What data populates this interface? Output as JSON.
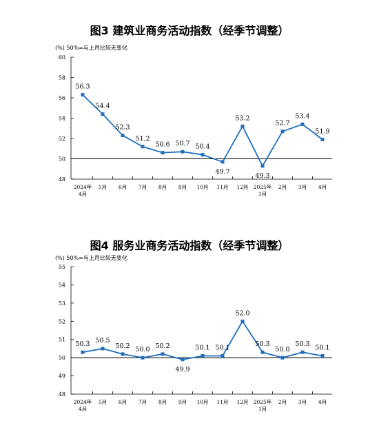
{
  "chart_data": [
    {
      "type": "line",
      "title": "图3  建筑业商务活动指数（经季节调整）",
      "unit_note": "(%)  50%=与上月比较无变化",
      "categories": [
        [
          "2024年",
          "4月"
        ],
        [
          "5月"
        ],
        [
          "6月"
        ],
        [
          "7月"
        ],
        [
          "8月"
        ],
        [
          "9月"
        ],
        [
          "10月"
        ],
        [
          "11月"
        ],
        [
          "12月"
        ],
        [
          "2025年",
          "1月"
        ],
        [
          "2月"
        ],
        [
          "3月"
        ],
        [
          "4月"
        ]
      ],
      "values": [
        56.3,
        54.4,
        52.3,
        51.2,
        50.6,
        50.7,
        50.4,
        49.7,
        53.2,
        49.3,
        52.7,
        53.4,
        51.9
      ],
      "value_labels": [
        "56.3",
        "54.4",
        "52.3",
        "51.2",
        "50.6",
        "50.7",
        "50.4",
        "49.7",
        "53.2",
        "49.3",
        "52.7",
        "53.4",
        "51.9"
      ],
      "y_ticks": [
        "48",
        "50",
        "52",
        "54",
        "56",
        "58",
        "60"
      ],
      "ylim": [
        48,
        60
      ],
      "reference_line": 50,
      "color": "#1f6fbf"
    },
    {
      "type": "line",
      "title": "图4  服务业商务活动指数（经季节调整）",
      "unit_note": "(%)  50%=与上月比较无变化",
      "categories": [
        [
          "2024年",
          "4月"
        ],
        [
          "5月"
        ],
        [
          "6月"
        ],
        [
          "7月"
        ],
        [
          "8月"
        ],
        [
          "9月"
        ],
        [
          "10月"
        ],
        [
          "11月"
        ],
        [
          "12月"
        ],
        [
          "2025年",
          "1月"
        ],
        [
          "2月"
        ],
        [
          "3月"
        ],
        [
          "4月"
        ]
      ],
      "values": [
        50.3,
        50.5,
        50.2,
        50.0,
        50.2,
        49.9,
        50.1,
        50.1,
        52.0,
        50.3,
        50.0,
        50.3,
        50.1
      ],
      "value_labels": [
        "50.3",
        "50.5",
        "50.2",
        "50.0",
        "50.2",
        "49.9",
        "50.1",
        "50.1",
        "52.0",
        "50.3",
        "50.0",
        "50.3",
        "50.1"
      ],
      "y_ticks": [
        "48",
        "49",
        "50",
        "51",
        "52",
        "53",
        "54",
        "55"
      ],
      "ylim": [
        48,
        55
      ],
      "reference_line": 50,
      "color": "#1f6fbf"
    }
  ]
}
